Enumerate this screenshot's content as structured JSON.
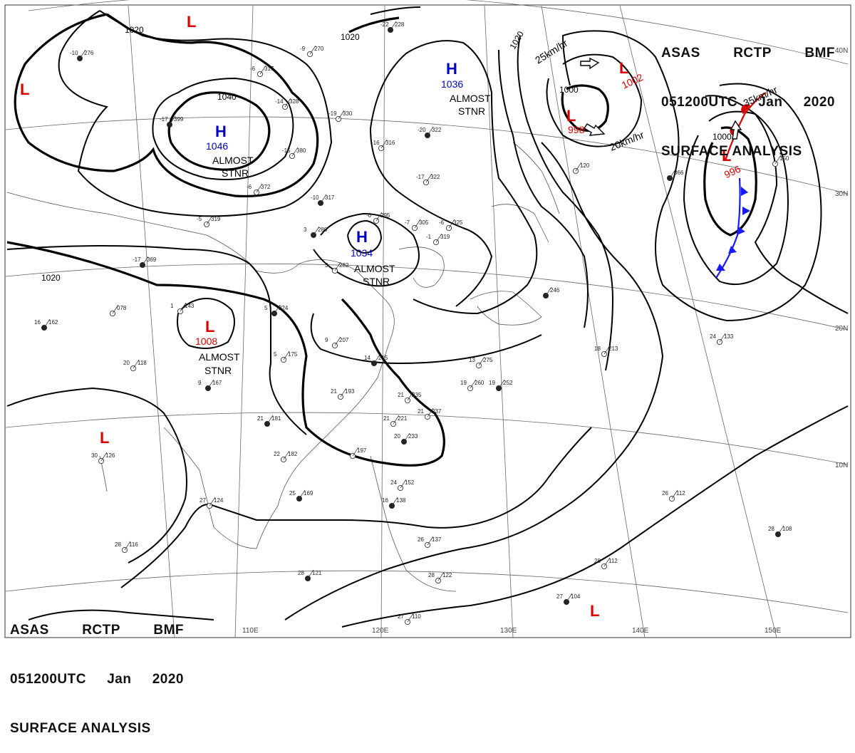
{
  "header": {
    "line1": [
      "ASAS",
      "RCTP",
      "BMF"
    ],
    "line2": [
      "051200UTC",
      "Jan",
      "2020"
    ],
    "line3": "SURFACE ANALYSIS"
  },
  "colors": {
    "high": "#0000cc",
    "low": "#dd0000",
    "isobar": "#000000",
    "cold_front": "#1a1aff",
    "warm_front": "#dd0000"
  },
  "isobar_labels": [
    "1020",
    "1020",
    "1040",
    "1020",
    "1000",
    "1000"
  ],
  "centers": [
    {
      "type": "H",
      "value": "1046",
      "note": "ALMOST",
      "note2": "STNR"
    },
    {
      "type": "H",
      "value": "1036",
      "note": "ALMOST",
      "note2": "STNR"
    },
    {
      "type": "H",
      "value": "1034",
      "note": "ALMOST",
      "note2": "STNR"
    },
    {
      "type": "L",
      "value": "1008",
      "note": "ALMOST",
      "note2": "STNR"
    },
    {
      "type": "L",
      "value": "998"
    },
    {
      "type": "L",
      "value": "1002"
    },
    {
      "type": "L",
      "value": "996"
    },
    {
      "type": "L"
    },
    {
      "type": "L"
    },
    {
      "type": "L"
    },
    {
      "type": "L"
    }
  ],
  "motion_labels": [
    "25km/hr",
    "20km/hr",
    "35km/hr"
  ],
  "lat_labels": [
    "40N",
    "30N",
    "20N",
    "10N"
  ],
  "lon_labels": [
    "110E",
    "120E",
    "130E",
    "140E",
    "150E"
  ],
  "stations": [
    {
      "t": "-10",
      "p": "276"
    },
    {
      "t": "-6",
      "p": "317"
    },
    {
      "t": "-9",
      "p": "270"
    },
    {
      "t": "-22",
      "p": "228"
    },
    {
      "t": "-14",
      "p": "328"
    },
    {
      "t": "-19",
      "p": "330"
    },
    {
      "t": "-17",
      "p": "399"
    },
    {
      "t": "-15",
      "p": "380"
    },
    {
      "t": "-16",
      "p": "316"
    },
    {
      "t": "-20",
      "p": "322"
    },
    {
      "t": "-17",
      "p": "322"
    },
    {
      "t": "-6",
      "p": "372"
    },
    {
      "t": "-10",
      "p": "317"
    },
    {
      "t": "-5",
      "p": "319"
    },
    {
      "t": "-6",
      "p": "325"
    },
    {
      "t": "3",
      "p": "280"
    },
    {
      "t": "-0",
      "p": "295"
    },
    {
      "t": "-7",
      "p": "305"
    },
    {
      "t": "-17",
      "p": "369"
    },
    {
      "t": "-1",
      "p": "319"
    },
    {
      "t": "3",
      "p": "282"
    },
    {
      "t": "16",
      "p": "162"
    },
    {
      "t": "",
      "p": "078"
    },
    {
      "t": "1",
      "p": "143"
    },
    {
      "t": "5",
      "p": "224"
    },
    {
      "t": "9",
      "p": "207"
    },
    {
      "t": "5",
      "p": "175"
    },
    {
      "t": "14",
      "p": "215"
    },
    {
      "t": "13",
      "p": "275"
    },
    {
      "t": "20",
      "p": "118"
    },
    {
      "t": "9",
      "p": "167"
    },
    {
      "t": "21",
      "p": "193"
    },
    {
      "t": "19",
      "p": "260"
    },
    {
      "t": "19",
      "p": "252"
    },
    {
      "t": "21",
      "p": "235"
    },
    {
      "t": "21",
      "p": "237"
    },
    {
      "t": "21",
      "p": "181"
    },
    {
      "t": "22",
      "p": "182"
    },
    {
      "t": "21",
      "p": "221"
    },
    {
      "t": "20",
      "p": "233"
    },
    {
      "t": "",
      "p": "197"
    },
    {
      "t": "30",
      "p": "126"
    },
    {
      "t": "25",
      "p": "169"
    },
    {
      "t": "27",
      "p": "124"
    },
    {
      "t": "24",
      "p": "152"
    },
    {
      "t": "16",
      "p": "138"
    },
    {
      "t": "28",
      "p": "116"
    },
    {
      "t": "26",
      "p": "137"
    },
    {
      "t": "28",
      "p": "121"
    },
    {
      "t": "28",
      "p": "122"
    },
    {
      "t": "27",
      "p": "110"
    },
    {
      "t": "27",
      "p": "104"
    },
    {
      "t": "28",
      "p": "112"
    },
    {
      "t": "26",
      "p": "112"
    },
    {
      "t": "28",
      "p": "108"
    },
    {
      "t": "24",
      "p": "133"
    },
    {
      "t": "18",
      "p": "213"
    },
    {
      "t": "",
      "p": "246"
    },
    {
      "t": "",
      "p": "120"
    },
    {
      "t": "",
      "p": "150"
    },
    {
      "t": "",
      "p": "066"
    }
  ]
}
